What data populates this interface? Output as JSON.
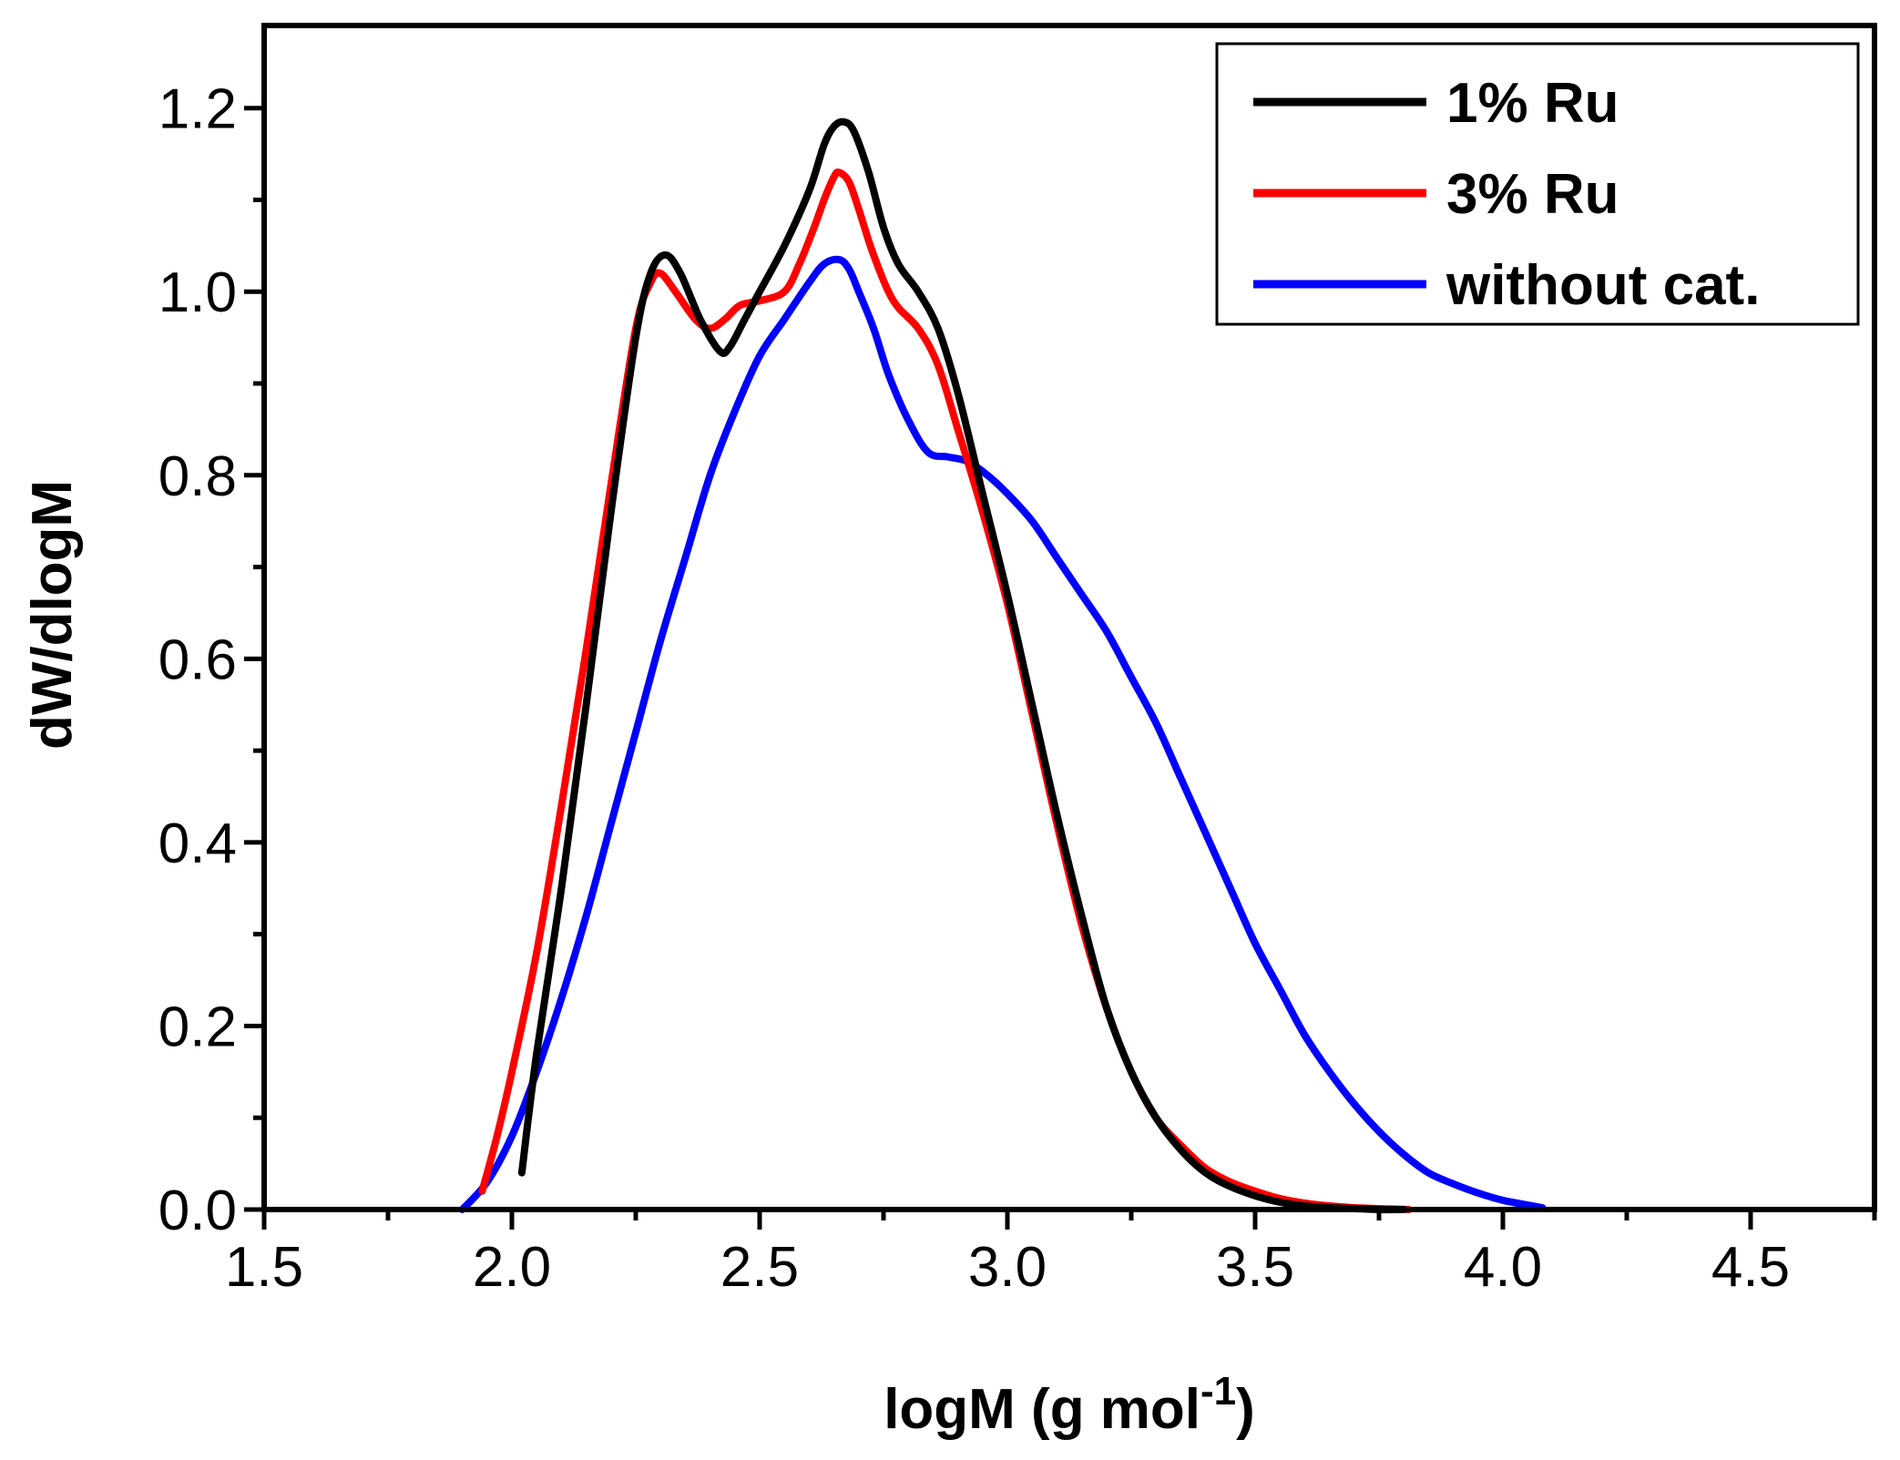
{
  "chart_data": {
    "type": "line",
    "title": "",
    "xlabel": "logM (g mol",
    "xlabel_sup": "-1",
    "xlabel_close": ")",
    "ylabel": "dW/dlogM",
    "xlim": [
      1.5,
      4.75
    ],
    "ylim": [
      0.0,
      1.29
    ],
    "x_ticks": [
      1.5,
      2.0,
      2.5,
      3.0,
      3.5,
      4.0,
      4.5
    ],
    "x_tick_labels": [
      "1.5",
      "2.0",
      "2.5",
      "3.0",
      "3.5",
      "4.0",
      "4.5"
    ],
    "y_ticks": [
      0.0,
      0.2,
      0.4,
      0.6,
      0.8,
      1.0,
      1.2
    ],
    "y_tick_labels": [
      "0.0",
      "0.2",
      "0.4",
      "0.6",
      "0.8",
      "1.0",
      "1.2"
    ],
    "x_minor_step": 0.25,
    "y_minor_step": 0.1,
    "legend_position": "top-right",
    "series": [
      {
        "name": "1% Ru",
        "color": "#000000",
        "x": [
          2.02,
          2.05,
          2.1,
          2.15,
          2.2,
          2.25,
          2.28,
          2.31,
          2.34,
          2.38,
          2.42,
          2.44,
          2.47,
          2.5,
          2.55,
          2.6,
          2.63,
          2.65,
          2.67,
          2.69,
          2.72,
          2.75,
          2.78,
          2.82,
          2.86,
          2.9,
          2.95,
          3.0,
          3.05,
          3.1,
          3.15,
          3.2,
          3.25,
          3.3,
          3.35,
          3.4,
          3.45,
          3.5,
          3.55,
          3.6,
          3.65,
          3.7,
          3.75,
          3.8
        ],
        "y": [
          0.04,
          0.17,
          0.35,
          0.55,
          0.76,
          0.95,
          1.02,
          1.04,
          1.02,
          0.97,
          0.935,
          0.94,
          0.97,
          1.0,
          1.05,
          1.11,
          1.16,
          1.18,
          1.185,
          1.175,
          1.13,
          1.07,
          1.03,
          1.0,
          0.96,
          0.89,
          0.78,
          0.67,
          0.55,
          0.43,
          0.32,
          0.22,
          0.15,
          0.1,
          0.065,
          0.04,
          0.025,
          0.015,
          0.008,
          0.004,
          0.002,
          0.001,
          0.0,
          0.0
        ]
      },
      {
        "name": "3% Ru",
        "color": "#ff0000",
        "x": [
          1.94,
          1.97,
          2.0,
          2.05,
          2.1,
          2.15,
          2.2,
          2.25,
          2.28,
          2.3,
          2.33,
          2.37,
          2.4,
          2.43,
          2.46,
          2.5,
          2.55,
          2.58,
          2.61,
          2.63,
          2.65,
          2.66,
          2.68,
          2.7,
          2.73,
          2.77,
          2.82,
          2.86,
          2.9,
          2.95,
          3.0,
          3.05,
          3.1,
          3.15,
          3.2,
          3.25,
          3.3,
          3.35,
          3.4,
          3.45,
          3.5,
          3.55,
          3.6,
          3.65,
          3.7,
          3.75,
          3.81
        ],
        "y": [
          0.02,
          0.08,
          0.15,
          0.28,
          0.44,
          0.61,
          0.79,
          0.96,
          1.01,
          1.02,
          1.0,
          0.97,
          0.96,
          0.97,
          0.985,
          0.99,
          1.0,
          1.03,
          1.07,
          1.1,
          1.125,
          1.13,
          1.12,
          1.09,
          1.04,
          0.99,
          0.96,
          0.92,
          0.85,
          0.76,
          0.66,
          0.54,
          0.42,
          0.31,
          0.22,
          0.15,
          0.1,
          0.07,
          0.045,
          0.03,
          0.02,
          0.012,
          0.007,
          0.004,
          0.002,
          0.001,
          0.0
        ]
      },
      {
        "name": "without cat.",
        "color": "#0000ff",
        "x": [
          1.9,
          1.95,
          2.0,
          2.05,
          2.1,
          2.15,
          2.2,
          2.25,
          2.3,
          2.35,
          2.4,
          2.45,
          2.5,
          2.55,
          2.6,
          2.63,
          2.66,
          2.68,
          2.7,
          2.73,
          2.76,
          2.8,
          2.84,
          2.88,
          2.92,
          2.96,
          3.0,
          3.05,
          3.1,
          3.15,
          3.2,
          3.25,
          3.3,
          3.35,
          3.4,
          3.45,
          3.5,
          3.55,
          3.6,
          3.65,
          3.7,
          3.75,
          3.8,
          3.85,
          3.9,
          3.95,
          4.0,
          4.05,
          4.08
        ],
        "y": [
          0.0,
          0.03,
          0.08,
          0.15,
          0.23,
          0.32,
          0.42,
          0.52,
          0.62,
          0.71,
          0.8,
          0.87,
          0.93,
          0.97,
          1.01,
          1.03,
          1.035,
          1.025,
          1.0,
          0.96,
          0.91,
          0.86,
          0.825,
          0.82,
          0.815,
          0.8,
          0.78,
          0.75,
          0.71,
          0.67,
          0.63,
          0.58,
          0.53,
          0.47,
          0.41,
          0.35,
          0.29,
          0.24,
          0.19,
          0.15,
          0.115,
          0.085,
          0.06,
          0.04,
          0.028,
          0.018,
          0.01,
          0.005,
          0.002
        ]
      }
    ]
  }
}
